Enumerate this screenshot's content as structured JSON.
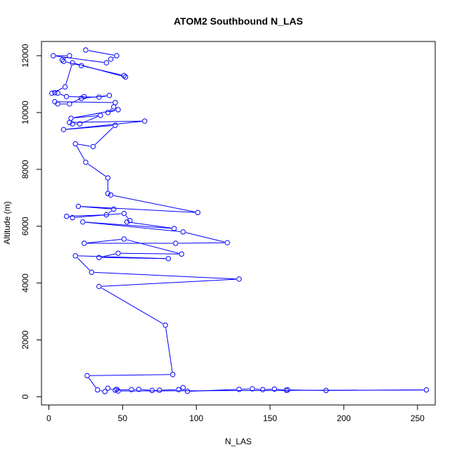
{
  "chart_data": {
    "type": "scatter",
    "title": "ATOM2 Southbound N_LAS",
    "xlabel": "N_LAS",
    "ylabel": "Altitude (m)",
    "xlim": [
      -5,
      262
    ],
    "ylim": [
      -290,
      12500
    ],
    "xticks": [
      0,
      50,
      100,
      150,
      200,
      250
    ],
    "yticks": [
      0,
      2000,
      4000,
      6000,
      8000,
      10000,
      12000
    ],
    "grid": false,
    "legend": "none",
    "color": "#0000ff",
    "points_connected": true,
    "series": [
      {
        "values": [
          [
            25,
            12200
          ],
          [
            46,
            12000
          ],
          [
            42,
            11880
          ],
          [
            39,
            11750
          ],
          [
            3,
            12000
          ],
          [
            14,
            12000
          ],
          [
            9,
            11850
          ],
          [
            10,
            11800
          ],
          [
            22,
            11650
          ],
          [
            51,
            11300
          ],
          [
            52,
            11250
          ],
          [
            16,
            11750
          ],
          [
            11,
            10900
          ],
          [
            2,
            10680
          ],
          [
            4,
            10700
          ],
          [
            6,
            10680
          ],
          [
            12,
            10560
          ],
          [
            34,
            10540
          ],
          [
            41,
            10600
          ],
          [
            22,
            10500
          ],
          [
            24,
            10560
          ],
          [
            14,
            10300
          ],
          [
            6,
            10300
          ],
          [
            4,
            10380
          ],
          [
            45,
            10350
          ],
          [
            44,
            10200
          ],
          [
            40,
            10000
          ],
          [
            47,
            10100
          ],
          [
            15,
            9800
          ],
          [
            35,
            9900
          ],
          [
            21,
            9600
          ],
          [
            16,
            9600
          ],
          [
            14,
            9650
          ],
          [
            65,
            9700
          ],
          [
            10,
            9400
          ],
          [
            45,
            9550
          ],
          [
            30,
            8800
          ],
          [
            18,
            8900
          ],
          [
            25,
            8250
          ],
          [
            40,
            7700
          ],
          [
            40,
            7150
          ],
          [
            42,
            7100
          ],
          [
            101,
            6480
          ],
          [
            20,
            6700
          ],
          [
            44,
            6600
          ],
          [
            39,
            6400
          ],
          [
            12,
            6350
          ],
          [
            16,
            6300
          ],
          [
            51,
            6450
          ],
          [
            55,
            6200
          ],
          [
            53,
            6150
          ],
          [
            85,
            5920
          ],
          [
            23,
            6150
          ],
          [
            91,
            5800
          ],
          [
            121,
            5420
          ],
          [
            86,
            5400
          ],
          [
            24,
            5400
          ],
          [
            51,
            5550
          ],
          [
            90,
            5020
          ],
          [
            47,
            5050
          ],
          [
            34,
            4900
          ],
          [
            81,
            4860
          ],
          [
            18,
            4960
          ],
          [
            29,
            4380
          ],
          [
            129,
            4140
          ],
          [
            34,
            3880
          ],
          [
            79,
            2520
          ],
          [
            84,
            780
          ],
          [
            26,
            740
          ],
          [
            33,
            240
          ],
          [
            38,
            180
          ],
          [
            40,
            300
          ],
          [
            45,
            230
          ],
          [
            56,
            250
          ],
          [
            61,
            260
          ],
          [
            70,
            220
          ],
          [
            75,
            230
          ],
          [
            88,
            250
          ],
          [
            91,
            320
          ],
          [
            94,
            190
          ],
          [
            129,
            260
          ],
          [
            138,
            280
          ],
          [
            145,
            250
          ],
          [
            153,
            270
          ],
          [
            161,
            230
          ],
          [
            162,
            240
          ],
          [
            188,
            220
          ],
          [
            256,
            240
          ],
          [
            47,
            200
          ],
          [
            46,
            260
          ]
        ]
      }
    ]
  }
}
